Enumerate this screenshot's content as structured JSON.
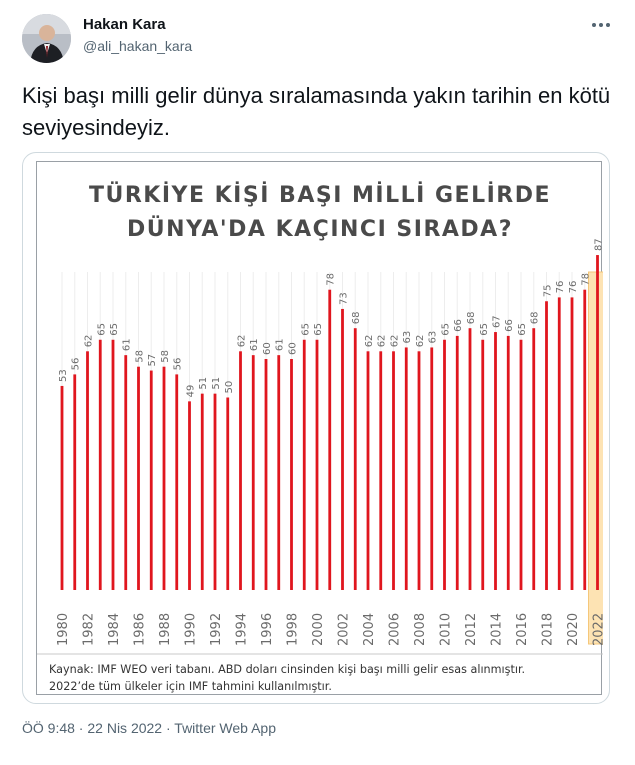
{
  "tweet": {
    "author_name": "Hakan Kara",
    "author_handle": "@ali_hakan_kara",
    "text": "Kişi başı milli gelir dünya sıralamasında yakın tarihin en kötü seviyesindeyiz.",
    "time": "ÖÖ 9:48",
    "separator": " · ",
    "date": "22 Nis 2022",
    "source": "Twitter Web App"
  },
  "chart_data": {
    "type": "bar",
    "title_line1": "TÜRKİYE KİŞİ BAŞI MİLLİ GELİRDE",
    "title_line2": "DÜNYA'DA KAÇINCI SIRADA?",
    "categories": [
      "1980",
      "1981",
      "1982",
      "1983",
      "1984",
      "1985",
      "1986",
      "1987",
      "1988",
      "1989",
      "1990",
      "1991",
      "1992",
      "1993",
      "1994",
      "1995",
      "1996",
      "1997",
      "1998",
      "1999",
      "2000",
      "2001",
      "2002",
      "2003",
      "2004",
      "2005",
      "2006",
      "2007",
      "2008",
      "2009",
      "2010",
      "2011",
      "2012",
      "2013",
      "2014",
      "2015",
      "2016",
      "2017",
      "2018",
      "2019",
      "2020",
      "2021",
      "2022"
    ],
    "tick_labels": [
      "1980",
      "1982",
      "1984",
      "1986",
      "1988",
      "1990",
      "1992",
      "1994",
      "1996",
      "1998",
      "2000",
      "2002",
      "2004",
      "2006",
      "2008",
      "2010",
      "2012",
      "2014",
      "2016",
      "2018",
      "2020",
      "2022"
    ],
    "values": [
      53,
      56,
      62,
      65,
      65,
      61,
      58,
      57,
      58,
      56,
      49,
      51,
      51,
      50,
      62,
      61,
      60,
      61,
      60,
      65,
      65,
      78,
      73,
      68,
      62,
      62,
      62,
      63,
      62,
      63,
      65,
      66,
      68,
      65,
      67,
      66,
      65,
      68,
      75,
      76,
      76,
      78,
      87
    ],
    "highlight_category": "2022",
    "bar_color": "#e0161e",
    "highlight_color": "#fde3b3",
    "source_line1": "Kaynak: IMF WEO veri tabanı. ABD doları cinsinden kişi başı milli gelir esas alınmıştır.",
    "source_line2": "2022’de tüm ülkeler için IMF tahmini kullanılmıştır."
  }
}
